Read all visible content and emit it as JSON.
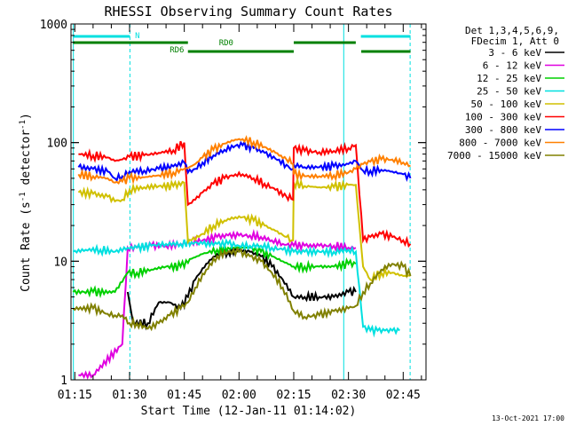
{
  "chart_data": {
    "type": "line",
    "title": "RHESSI Observing Summary Count Rates",
    "xlabel": "Start Time (12-Jan-11 01:14:02)",
    "ylabel_main": "Count Rate (s",
    "ylabel_sup1": "-1",
    "ylabel_mid": " detector",
    "ylabel_sup2": "-1",
    "ylabel_end": ")",
    "y_scale": "log",
    "ylim": [
      1,
      1000
    ],
    "xlim_min": [
      73.95,
      160
    ],
    "x_tick_labels": [
      {
        "t": 75,
        "label": "01:15"
      },
      {
        "t": 90,
        "label": "01:30"
      },
      {
        "t": 105,
        "label": "01:45"
      },
      {
        "t": 120,
        "label": "02:00"
      },
      {
        "t": 135,
        "label": "02:15"
      },
      {
        "t": 150,
        "label": "02:30"
      },
      {
        "t": 165,
        "label": "02:45"
      }
    ],
    "y_tick_labels": [
      {
        "v": 1,
        "label": "1"
      },
      {
        "v": 10,
        "label": "10"
      },
      {
        "v": 100,
        "label": "100"
      },
      {
        "v": 1000,
        "label": "1000"
      }
    ],
    "legend": {
      "placement": "right",
      "header": [
        "Det 1,3,4,5,6,9,",
        "FDecim 1, Att 0"
      ]
    },
    "series": [
      {
        "name": "3 - 6 keV",
        "color": "#000000",
        "points": [
          [
            89.5,
            5.5
          ],
          [
            91,
            3
          ],
          [
            95,
            3
          ],
          [
            98,
            4.5
          ],
          [
            101,
            4.5
          ],
          [
            104,
            4
          ],
          [
            106,
            5
          ],
          [
            108,
            7
          ],
          [
            111,
            9.5
          ],
          [
            114,
            11.5
          ],
          [
            117,
            12
          ],
          [
            120,
            12.5
          ],
          [
            123,
            12
          ],
          [
            126,
            11
          ],
          [
            129,
            9
          ],
          [
            132,
            7
          ],
          [
            135,
            5
          ],
          [
            138,
            5
          ],
          [
            142,
            5
          ],
          [
            146,
            5
          ],
          [
            150,
            5.5
          ],
          [
            152,
            5.5
          ]
        ]
      },
      {
        "name": "6 - 12 keV",
        "color": "#e000e0",
        "points": [
          [
            76,
            1.1
          ],
          [
            80,
            1.1
          ],
          [
            88,
            2
          ],
          [
            89.5,
            13
          ],
          [
            92,
            13
          ],
          [
            96,
            13.5
          ],
          [
            100,
            13.5
          ],
          [
            104,
            14
          ],
          [
            107,
            14.5
          ],
          [
            110,
            15
          ],
          [
            114,
            16
          ],
          [
            117,
            16.5
          ],
          [
            120,
            16.5
          ],
          [
            123,
            16.5
          ],
          [
            126,
            16
          ],
          [
            129,
            15
          ],
          [
            132,
            14
          ],
          [
            135,
            13.5
          ],
          [
            138,
            13.5
          ],
          [
            142,
            13.5
          ],
          [
            146,
            13.5
          ],
          [
            150,
            13
          ],
          [
            152,
            13
          ]
        ]
      },
      {
        "name": "12 - 25 keV",
        "color": "#00d000",
        "points": [
          [
            74.5,
            5.5
          ],
          [
            80,
            5.5
          ],
          [
            86,
            5.5
          ],
          [
            89.5,
            8
          ],
          [
            92,
            8
          ],
          [
            96,
            8.5
          ],
          [
            100,
            9
          ],
          [
            104,
            9
          ],
          [
            107,
            10.5
          ],
          [
            110,
            11.5
          ],
          [
            114,
            12.5
          ],
          [
            117,
            13
          ],
          [
            120,
            13
          ],
          [
            123,
            13
          ],
          [
            126,
            12
          ],
          [
            129,
            11
          ],
          [
            132,
            10
          ],
          [
            135,
            9
          ],
          [
            138,
            9
          ],
          [
            142,
            9
          ],
          [
            146,
            9
          ],
          [
            150,
            9.5
          ],
          [
            152,
            9.5
          ]
        ]
      },
      {
        "name": "25 - 50 keV",
        "color": "#00e0e0",
        "points": [
          [
            74.5,
            12
          ],
          [
            78,
            12.5
          ],
          [
            82,
            12.5
          ],
          [
            86,
            12
          ],
          [
            89.5,
            13
          ],
          [
            92,
            13
          ],
          [
            96,
            13.5
          ],
          [
            100,
            14
          ],
          [
            104,
            14
          ],
          [
            107,
            14.5
          ],
          [
            110,
            14
          ],
          [
            114,
            14
          ],
          [
            117,
            14
          ],
          [
            120,
            13.5
          ],
          [
            123,
            13.5
          ],
          [
            126,
            13.5
          ],
          [
            129,
            13
          ],
          [
            132,
            12.5
          ],
          [
            135,
            12
          ],
          [
            138,
            12
          ],
          [
            142,
            12
          ],
          [
            146,
            12
          ],
          [
            150,
            12.5
          ],
          [
            152,
            12
          ],
          [
            154,
            2.8
          ],
          [
            156,
            2.6
          ],
          [
            158,
            2.6
          ],
          [
            160,
            2.6
          ],
          [
            162,
            2.6
          ],
          [
            164,
            2.6
          ]
        ]
      },
      {
        "name": "50 - 100 keV",
        "color": "#d0c000",
        "points": [
          [
            76,
            38
          ],
          [
            80,
            37
          ],
          [
            84,
            35
          ],
          [
            86,
            32
          ],
          [
            88,
            33
          ],
          [
            90,
            40
          ],
          [
            94,
            42
          ],
          [
            98,
            43
          ],
          [
            102,
            43
          ],
          [
            105,
            46
          ],
          [
            106,
            14.5
          ],
          [
            107,
            15
          ],
          [
            110,
            17
          ],
          [
            113,
            20
          ],
          [
            116,
            22
          ],
          [
            119,
            23.5
          ],
          [
            121,
            23.5
          ],
          [
            124,
            22
          ],
          [
            127,
            20
          ],
          [
            130,
            18
          ],
          [
            133,
            16
          ],
          [
            134.8,
            15
          ],
          [
            135,
            46
          ],
          [
            138,
            43
          ],
          [
            142,
            42
          ],
          [
            146,
            42
          ],
          [
            150,
            44
          ],
          [
            152,
            44
          ],
          [
            154,
            9
          ],
          [
            156,
            7
          ],
          [
            159,
            8
          ],
          [
            162,
            8
          ],
          [
            165,
            7.5
          ],
          [
            167,
            7.5
          ]
        ]
      },
      {
        "name": "100 - 300 keV",
        "color": "#ff0000",
        "points": [
          [
            76,
            80
          ],
          [
            80,
            78
          ],
          [
            84,
            75
          ],
          [
            86,
            70
          ],
          [
            88,
            72
          ],
          [
            90,
            76
          ],
          [
            94,
            78
          ],
          [
            98,
            82
          ],
          [
            102,
            86
          ],
          [
            105,
            100
          ],
          [
            106,
            30
          ],
          [
            108,
            33
          ],
          [
            110,
            38
          ],
          [
            113,
            45
          ],
          [
            116,
            50
          ],
          [
            119,
            54
          ],
          [
            121,
            54
          ],
          [
            124,
            50
          ],
          [
            127,
            45
          ],
          [
            130,
            40
          ],
          [
            133,
            35
          ],
          [
            134.8,
            33
          ],
          [
            135,
            90
          ],
          [
            138,
            85
          ],
          [
            142,
            83
          ],
          [
            146,
            85
          ],
          [
            150,
            90
          ],
          [
            152,
            95
          ],
          [
            154,
            15
          ],
          [
            156,
            16
          ],
          [
            159,
            17
          ],
          [
            162,
            16
          ],
          [
            165,
            15
          ],
          [
            167,
            14
          ]
        ]
      },
      {
        "name": "300 - 800 keV",
        "color": "#0000ff",
        "points": [
          [
            76,
            62
          ],
          [
            80,
            60
          ],
          [
            84,
            57
          ],
          [
            86,
            50
          ],
          [
            88,
            52
          ],
          [
            90,
            57
          ],
          [
            94,
            58
          ],
          [
            98,
            60
          ],
          [
            102,
            63
          ],
          [
            105,
            68
          ],
          [
            106,
            56
          ],
          [
            108,
            60
          ],
          [
            110,
            68
          ],
          [
            113,
            78
          ],
          [
            116,
            87
          ],
          [
            119,
            94
          ],
          [
            121,
            95
          ],
          [
            124,
            90
          ],
          [
            127,
            82
          ],
          [
            130,
            73
          ],
          [
            133,
            65
          ],
          [
            134.8,
            60
          ],
          [
            135,
            65
          ],
          [
            138,
            62
          ],
          [
            142,
            62
          ],
          [
            146,
            63
          ],
          [
            150,
            66
          ],
          [
            152,
            70
          ],
          [
            154,
            58
          ],
          [
            156,
            58
          ],
          [
            159,
            59
          ],
          [
            162,
            57
          ],
          [
            165,
            54
          ],
          [
            167,
            50
          ]
        ]
      },
      {
        "name": "800 - 7000 keV",
        "color": "#ff8000",
        "points": [
          [
            76,
            54
          ],
          [
            80,
            52
          ],
          [
            84,
            50
          ],
          [
            86,
            46
          ],
          [
            88,
            47
          ],
          [
            90,
            50
          ],
          [
            94,
            51
          ],
          [
            98,
            53
          ],
          [
            102,
            56
          ],
          [
            105,
            60
          ],
          [
            106,
            61
          ],
          [
            108,
            66
          ],
          [
            110,
            75
          ],
          [
            113,
            87
          ],
          [
            116,
            98
          ],
          [
            119,
            106
          ],
          [
            121,
            107
          ],
          [
            124,
            101
          ],
          [
            127,
            92
          ],
          [
            130,
            82
          ],
          [
            133,
            72
          ],
          [
            134.8,
            66
          ],
          [
            135,
            54
          ],
          [
            138,
            52
          ],
          [
            142,
            52
          ],
          [
            146,
            53
          ],
          [
            150,
            56
          ],
          [
            152,
            60
          ],
          [
            154,
            66
          ],
          [
            156,
            69
          ],
          [
            159,
            72
          ],
          [
            162,
            72
          ],
          [
            165,
            68
          ],
          [
            167,
            64
          ]
        ]
      },
      {
        "name": "7000 - 15000 keV",
        "color": "#808000",
        "points": [
          [
            74.5,
            4
          ],
          [
            80,
            4
          ],
          [
            84,
            3.6
          ],
          [
            86,
            3.5
          ],
          [
            88,
            3.5
          ],
          [
            90,
            3
          ],
          [
            92,
            3
          ],
          [
            95,
            2.7
          ],
          [
            98,
            3
          ],
          [
            101,
            3.5
          ],
          [
            104,
            4
          ],
          [
            106,
            4.5
          ],
          [
            108,
            6
          ],
          [
            111,
            8.5
          ],
          [
            114,
            11
          ],
          [
            117,
            12
          ],
          [
            120,
            12
          ],
          [
            123,
            11
          ],
          [
            126,
            10
          ],
          [
            129,
            8
          ],
          [
            132,
            6
          ],
          [
            135,
            3.8
          ],
          [
            138,
            3.4
          ],
          [
            142,
            3.5
          ],
          [
            146,
            3.8
          ],
          [
            150,
            4
          ],
          [
            152,
            4.2
          ],
          [
            154,
            5.5
          ],
          [
            156,
            6.5
          ],
          [
            159,
            8.5
          ],
          [
            162,
            9.5
          ],
          [
            165,
            9
          ],
          [
            167,
            7.5
          ]
        ]
      }
    ],
    "vertical_markers": [
      {
        "t": 74.6,
        "color": "#00e0e0",
        "style": "solid"
      },
      {
        "t": 90.1,
        "color": "#00e0e0",
        "style": "dashed"
      },
      {
        "t": 148.7,
        "color": "#00e0e0",
        "style": "solid"
      },
      {
        "t": 166.9,
        "color": "#00e0e0",
        "style": "dashed"
      }
    ],
    "state_bars": [
      {
        "label": "N",
        "color": "#00e0e0",
        "segments": [
          [
            74.5,
            90.1
          ],
          [
            153.4,
            167
          ]
        ],
        "label_t": 91.5
      },
      {
        "label": "RD0",
        "color": "#008000",
        "segments": [
          [
            74.5,
            106
          ],
          [
            135,
            152
          ]
        ],
        "label_t": 114.5
      },
      {
        "label": "RD6",
        "color": "#008000",
        "segments": [
          [
            106,
            135
          ],
          [
            153.5,
            167
          ]
        ],
        "label_t": 101
      }
    ],
    "footer_date": "13-Oct-2021 17:00"
  }
}
